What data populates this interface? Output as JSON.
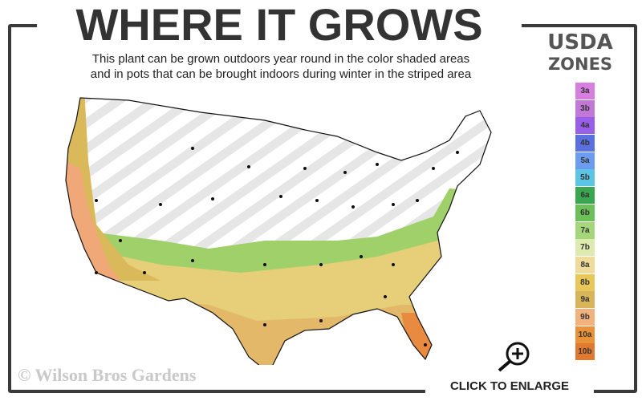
{
  "header": {
    "title": "WHERE IT GROWS",
    "subtitle_line1": "This plant can be grown outdoors year round in the color shaded areas",
    "subtitle_line2": "and in pots that can be brought indoors during winter in the striped area"
  },
  "legend": {
    "title_line1": "USDA",
    "title_line2": "ZONES",
    "zones": [
      {
        "label": "3a",
        "color": "#d67fe0"
      },
      {
        "label": "3b",
        "color": "#c278d6"
      },
      {
        "label": "4a",
        "color": "#9a5fe8"
      },
      {
        "label": "4b",
        "color": "#5a6fe0"
      },
      {
        "label": "5a",
        "color": "#6c9cf0"
      },
      {
        "label": "5b",
        "color": "#5cc4e4"
      },
      {
        "label": "6a",
        "color": "#3aa650"
      },
      {
        "label": "6b",
        "color": "#6cc05a"
      },
      {
        "label": "7a",
        "color": "#a6d67a"
      },
      {
        "label": "7b",
        "color": "#dfeab0"
      },
      {
        "label": "8a",
        "color": "#efdc9a"
      },
      {
        "label": "8b",
        "color": "#e8c85a"
      },
      {
        "label": "9a",
        "color": "#d8b45a"
      },
      {
        "label": "9b",
        "color": "#f2b27e"
      },
      {
        "label": "10a",
        "color": "#ea9238"
      },
      {
        "label": "10b",
        "color": "#e07a30"
      }
    ]
  },
  "footer": {
    "copyright": "© Wilson Bros Gardens",
    "enlarge_label": "CLICK TO ENLARGE"
  },
  "icons": {
    "enlarge": "magnifier-plus-icon"
  }
}
